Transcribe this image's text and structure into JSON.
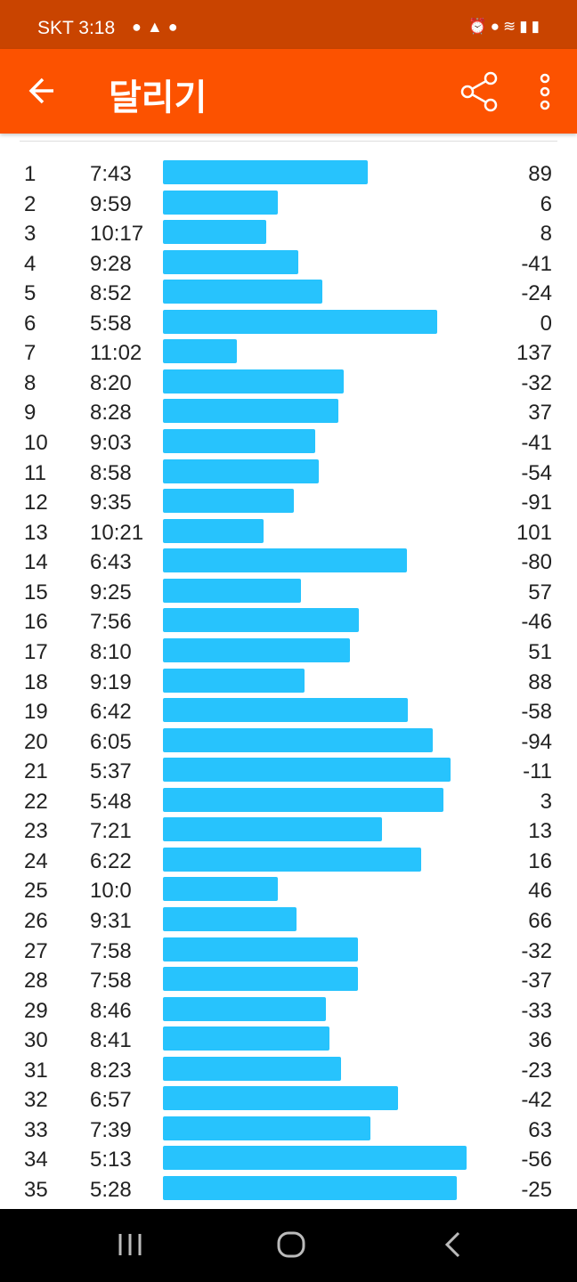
{
  "status_bar": {
    "carrier_time": "SKT 3:18",
    "left_icons": [
      "chat-bubble-icon",
      "warning-icon",
      "chat-bubble-icon"
    ],
    "right_icons": [
      "alarm-icon",
      "location-icon",
      "wifi-icon",
      "signal-icon",
      "battery-icon"
    ]
  },
  "app_bar": {
    "title": "달리기",
    "back_icon": "arrow-left-icon",
    "share_icon": "share-icon",
    "more_icon": "more-vertical-icon"
  },
  "colors": {
    "brand": "#fc5200",
    "status_bar": "#c94400",
    "bar": "#27c3fd"
  },
  "splits": [
    {
      "n": "1",
      "pace": "7:43",
      "elev": "89"
    },
    {
      "n": "2",
      "pace": "9:59",
      "elev": "6"
    },
    {
      "n": "3",
      "pace": "10:17",
      "elev": "8"
    },
    {
      "n": "4",
      "pace": "9:28",
      "elev": "-41"
    },
    {
      "n": "5",
      "pace": "8:52",
      "elev": "-24"
    },
    {
      "n": "6",
      "pace": "5:58",
      "elev": "0"
    },
    {
      "n": "7",
      "pace": "11:02",
      "elev": "137"
    },
    {
      "n": "8",
      "pace": "8:20",
      "elev": "-32"
    },
    {
      "n": "9",
      "pace": "8:28",
      "elev": "37"
    },
    {
      "n": "10",
      "pace": "9:03",
      "elev": "-41"
    },
    {
      "n": "11",
      "pace": "8:58",
      "elev": "-54"
    },
    {
      "n": "12",
      "pace": "9:35",
      "elev": "-91"
    },
    {
      "n": "13",
      "pace": "10:21",
      "elev": "101"
    },
    {
      "n": "14",
      "pace": "6:43",
      "elev": "-80"
    },
    {
      "n": "15",
      "pace": "9:25",
      "elev": "57"
    },
    {
      "n": "16",
      "pace": "7:56",
      "elev": "-46"
    },
    {
      "n": "17",
      "pace": "8:10",
      "elev": "51"
    },
    {
      "n": "18",
      "pace": "9:19",
      "elev": "88"
    },
    {
      "n": "19",
      "pace": "6:42",
      "elev": "-58"
    },
    {
      "n": "20",
      "pace": "6:05",
      "elev": "-94"
    },
    {
      "n": "21",
      "pace": "5:37",
      "elev": "-11"
    },
    {
      "n": "22",
      "pace": "5:48",
      "elev": "3"
    },
    {
      "n": "23",
      "pace": "7:21",
      "elev": "13"
    },
    {
      "n": "24",
      "pace": "6:22",
      "elev": "16"
    },
    {
      "n": "25",
      "pace": "10:0",
      "elev": "46"
    },
    {
      "n": "26",
      "pace": "9:31",
      "elev": "66"
    },
    {
      "n": "27",
      "pace": "7:58",
      "elev": "-32"
    },
    {
      "n": "28",
      "pace": "7:58",
      "elev": "-37"
    },
    {
      "n": "29",
      "pace": "8:46",
      "elev": "-33"
    },
    {
      "n": "30",
      "pace": "8:41",
      "elev": "36"
    },
    {
      "n": "31",
      "pace": "8:23",
      "elev": "-23"
    },
    {
      "n": "32",
      "pace": "6:57",
      "elev": "-42"
    },
    {
      "n": "33",
      "pace": "7:39",
      "elev": "63"
    },
    {
      "n": "34",
      "pace": "5:13",
      "elev": "-56"
    },
    {
      "n": "35",
      "pace": "5:28",
      "elev": "-25"
    }
  ],
  "nav_bar": {
    "icons": [
      "recent-apps-icon",
      "home-icon",
      "back-icon"
    ]
  }
}
